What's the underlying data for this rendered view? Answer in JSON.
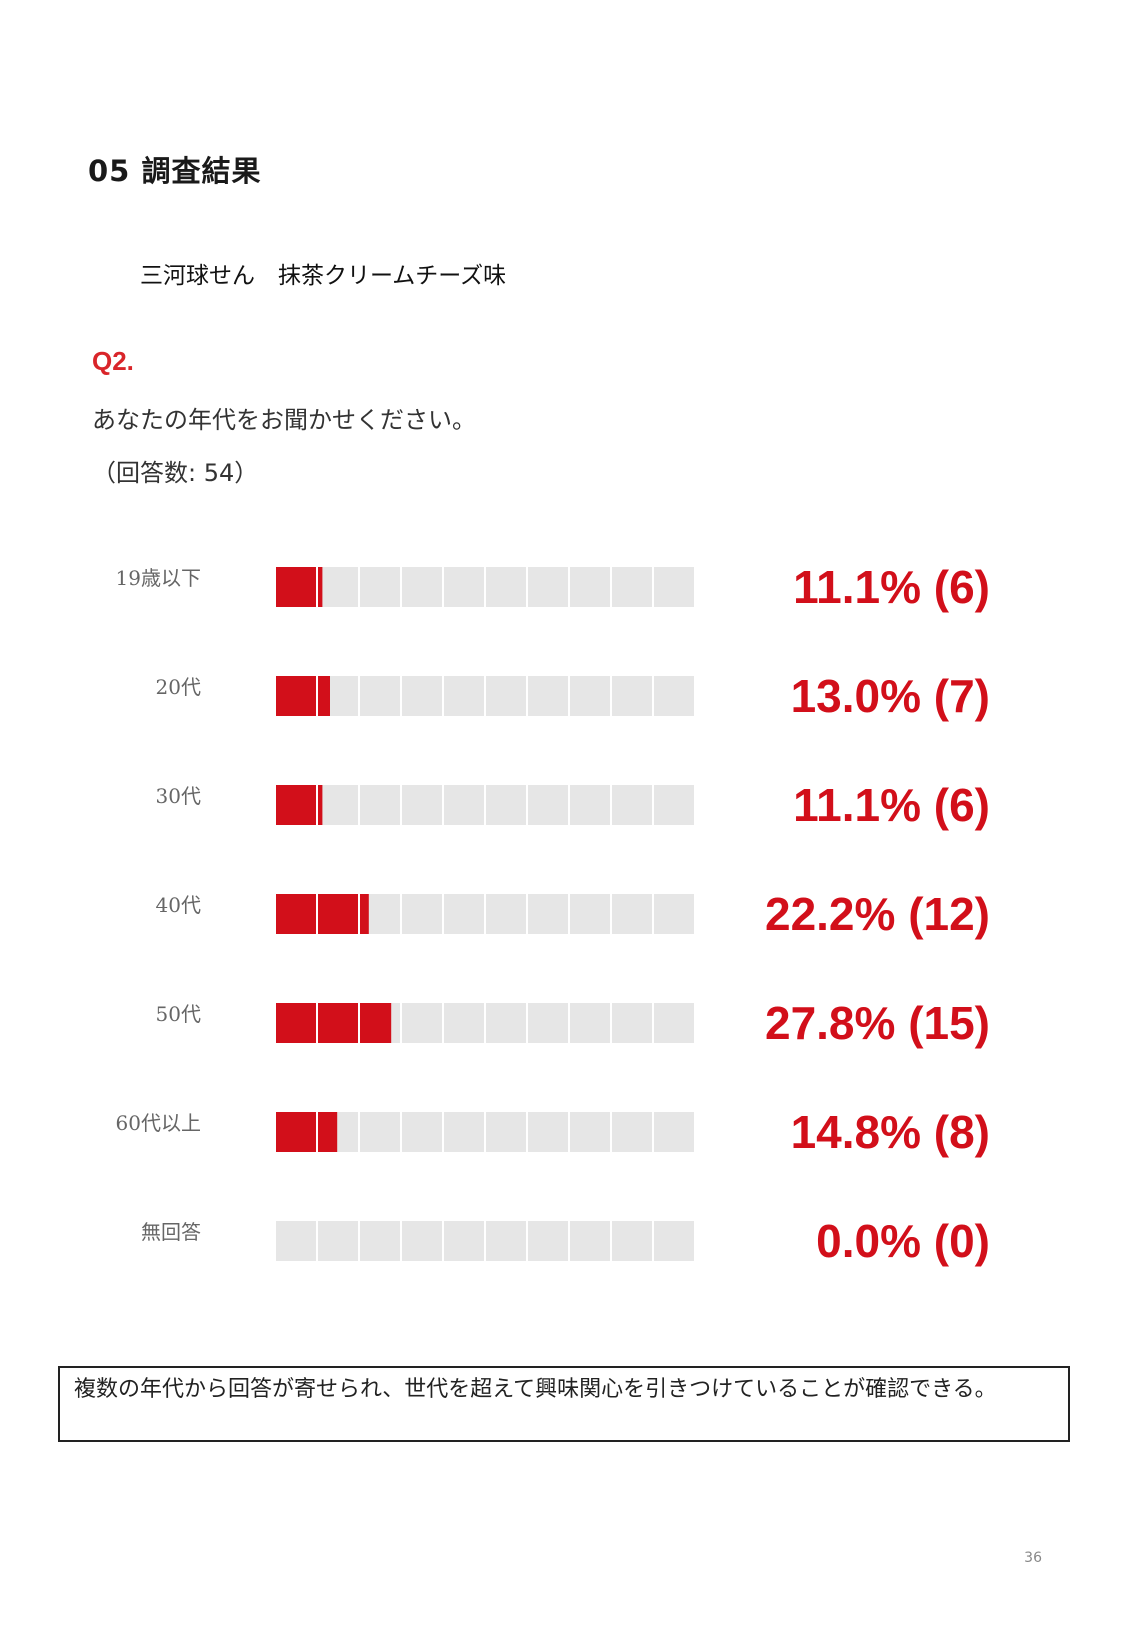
{
  "header": {
    "section": "05  調査結果",
    "product": "三河球せん　抹茶クリームチーズ味"
  },
  "question": {
    "label": "Q2.",
    "text": "あなたの年代をお聞かせください。",
    "count_text": "（回答数: 54）"
  },
  "chart_data": {
    "type": "bar",
    "orientation": "horizontal",
    "segments": 10,
    "categories": [
      "19歳以下",
      "20代",
      "30代",
      "40代",
      "50代",
      "60代以上",
      "無回答"
    ],
    "values": [
      11.1,
      13.0,
      11.1,
      22.2,
      27.8,
      14.8,
      0.0
    ],
    "counts": [
      6,
      7,
      6,
      12,
      15,
      8,
      0
    ],
    "value_labels": [
      "11.1% (6)",
      "13.0% (7)",
      "11.1% (6)",
      "22.2% (12)",
      "27.8% (15)",
      "14.8% (8)",
      "0.0% (0)"
    ],
    "xlim": [
      0,
      100
    ],
    "colors": {
      "fill": "#d20f1a",
      "empty": "#e6e6e6"
    }
  },
  "note": {
    "text": "複数の年代から回答が寄せられ、世代を超えて興味関心を引きつけていることが確認できる。"
  },
  "footer": {
    "page_number": "36"
  }
}
